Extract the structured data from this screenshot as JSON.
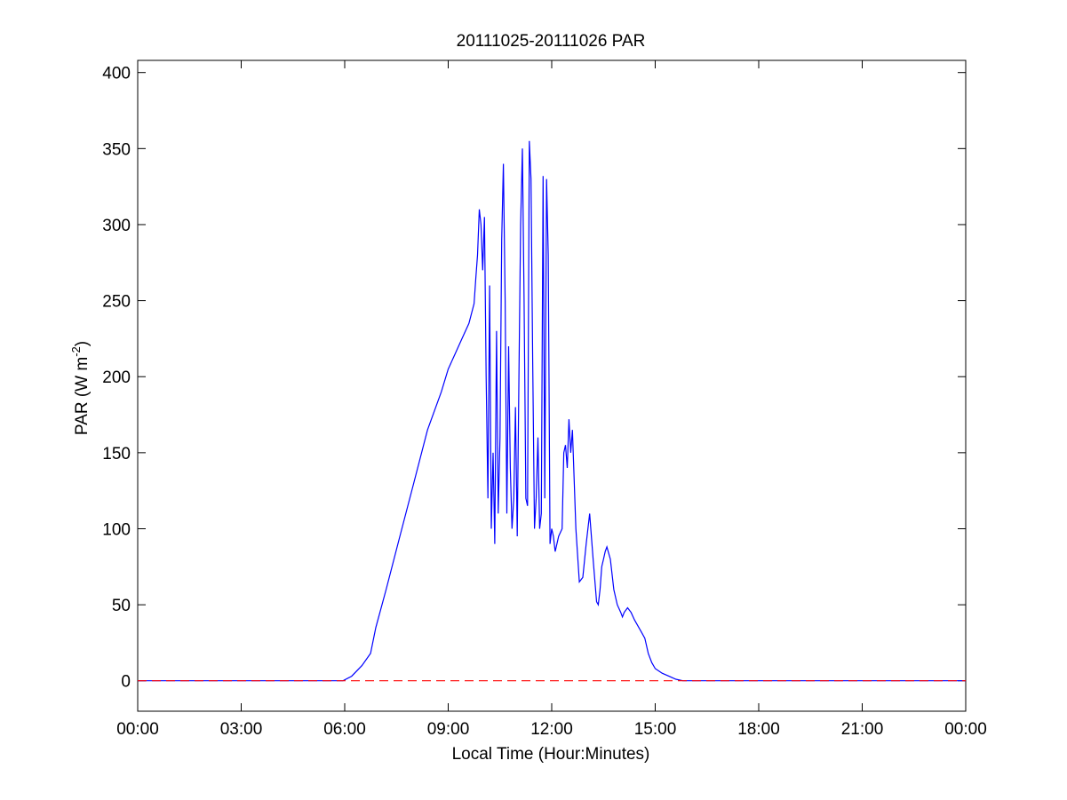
{
  "chart_data": {
    "type": "line",
    "title": "20111025-20111026 PAR",
    "xlabel": "Local Time (Hour:Minutes)",
    "ylabel": {
      "prefix": "PAR (W m",
      "sup": "-2",
      "suffix": ")"
    },
    "xlim": [
      0,
      24
    ],
    "ylim": [
      -20,
      408
    ],
    "x_ticks": [
      0,
      3,
      6,
      9,
      12,
      15,
      18,
      21,
      24
    ],
    "x_tick_labels": [
      "00:00",
      "03:00",
      "06:00",
      "09:00",
      "12:00",
      "15:00",
      "18:00",
      "21:00",
      "00:00"
    ],
    "y_ticks": [
      0,
      50,
      100,
      150,
      200,
      250,
      300,
      350,
      400
    ],
    "y_tick_labels": [
      "0",
      "50",
      "100",
      "150",
      "200",
      "250",
      "300",
      "350",
      "400"
    ],
    "grid": false,
    "colors": {
      "series": "#0000ff",
      "zero_line": "#ff0000",
      "axes": "#000000"
    },
    "series": [
      {
        "style": "solid",
        "color": "#0000ff",
        "x": [
          0,
          5.95,
          6.2,
          6.5,
          6.75,
          6.9,
          7.2,
          7.6,
          8.0,
          8.4,
          8.8,
          9.0,
          9.2,
          9.4,
          9.6,
          9.75,
          9.8,
          9.85,
          9.9,
          9.95,
          10.0,
          10.05,
          10.1,
          10.15,
          10.2,
          10.25,
          10.3,
          10.35,
          10.4,
          10.45,
          10.5,
          10.55,
          10.6,
          10.65,
          10.7,
          10.75,
          10.8,
          10.85,
          10.9,
          10.95,
          11.0,
          11.05,
          11.1,
          11.15,
          11.2,
          11.25,
          11.3,
          11.35,
          11.4,
          11.45,
          11.5,
          11.55,
          11.6,
          11.65,
          11.7,
          11.75,
          11.8,
          11.85,
          11.9,
          11.95,
          12.0,
          12.05,
          12.1,
          12.2,
          12.3,
          12.35,
          12.4,
          12.45,
          12.5,
          12.55,
          12.6,
          12.7,
          12.8,
          12.9,
          13.0,
          13.1,
          13.2,
          13.3,
          13.35,
          13.4,
          13.45,
          13.5,
          13.55,
          13.6,
          13.7,
          13.8,
          13.9,
          14.0,
          14.05,
          14.1,
          14.2,
          14.3,
          14.4,
          14.5,
          14.6,
          14.7,
          14.8,
          14.9,
          15.0,
          15.2,
          15.4,
          15.6,
          15.8,
          16.0,
          16.2,
          16.4,
          16.6,
          16.8,
          17.0,
          17.2,
          17.4,
          17.6,
          18.0,
          24
        ],
        "y": [
          0,
          0,
          3,
          10,
          18,
          35,
          60,
          95,
          130,
          165,
          190,
          205,
          215,
          225,
          235,
          248,
          265,
          280,
          310,
          300,
          270,
          305,
          200,
          120,
          260,
          100,
          150,
          90,
          230,
          110,
          160,
          290,
          340,
          250,
          110,
          220,
          140,
          100,
          120,
          180,
          95,
          200,
          300,
          350,
          250,
          120,
          115,
          355,
          330,
          210,
          100,
          120,
          160,
          100,
          110,
          332,
          120,
          330,
          280,
          90,
          100,
          95,
          85,
          95,
          100,
          150,
          155,
          140,
          172,
          150,
          165,
          100,
          65,
          68,
          90,
          110,
          80,
          52,
          50,
          60,
          75,
          80,
          85,
          88,
          80,
          60,
          50,
          45,
          42,
          45,
          48,
          45,
          40,
          36,
          32,
          28,
          18,
          12,
          8,
          5,
          3,
          1,
          0,
          0,
          0,
          0,
          0,
          0,
          0,
          0,
          0,
          0,
          0,
          0
        ]
      },
      {
        "style": "dashed",
        "color": "#ff0000",
        "x": [
          0,
          24
        ],
        "y": [
          0,
          0
        ]
      }
    ]
  }
}
